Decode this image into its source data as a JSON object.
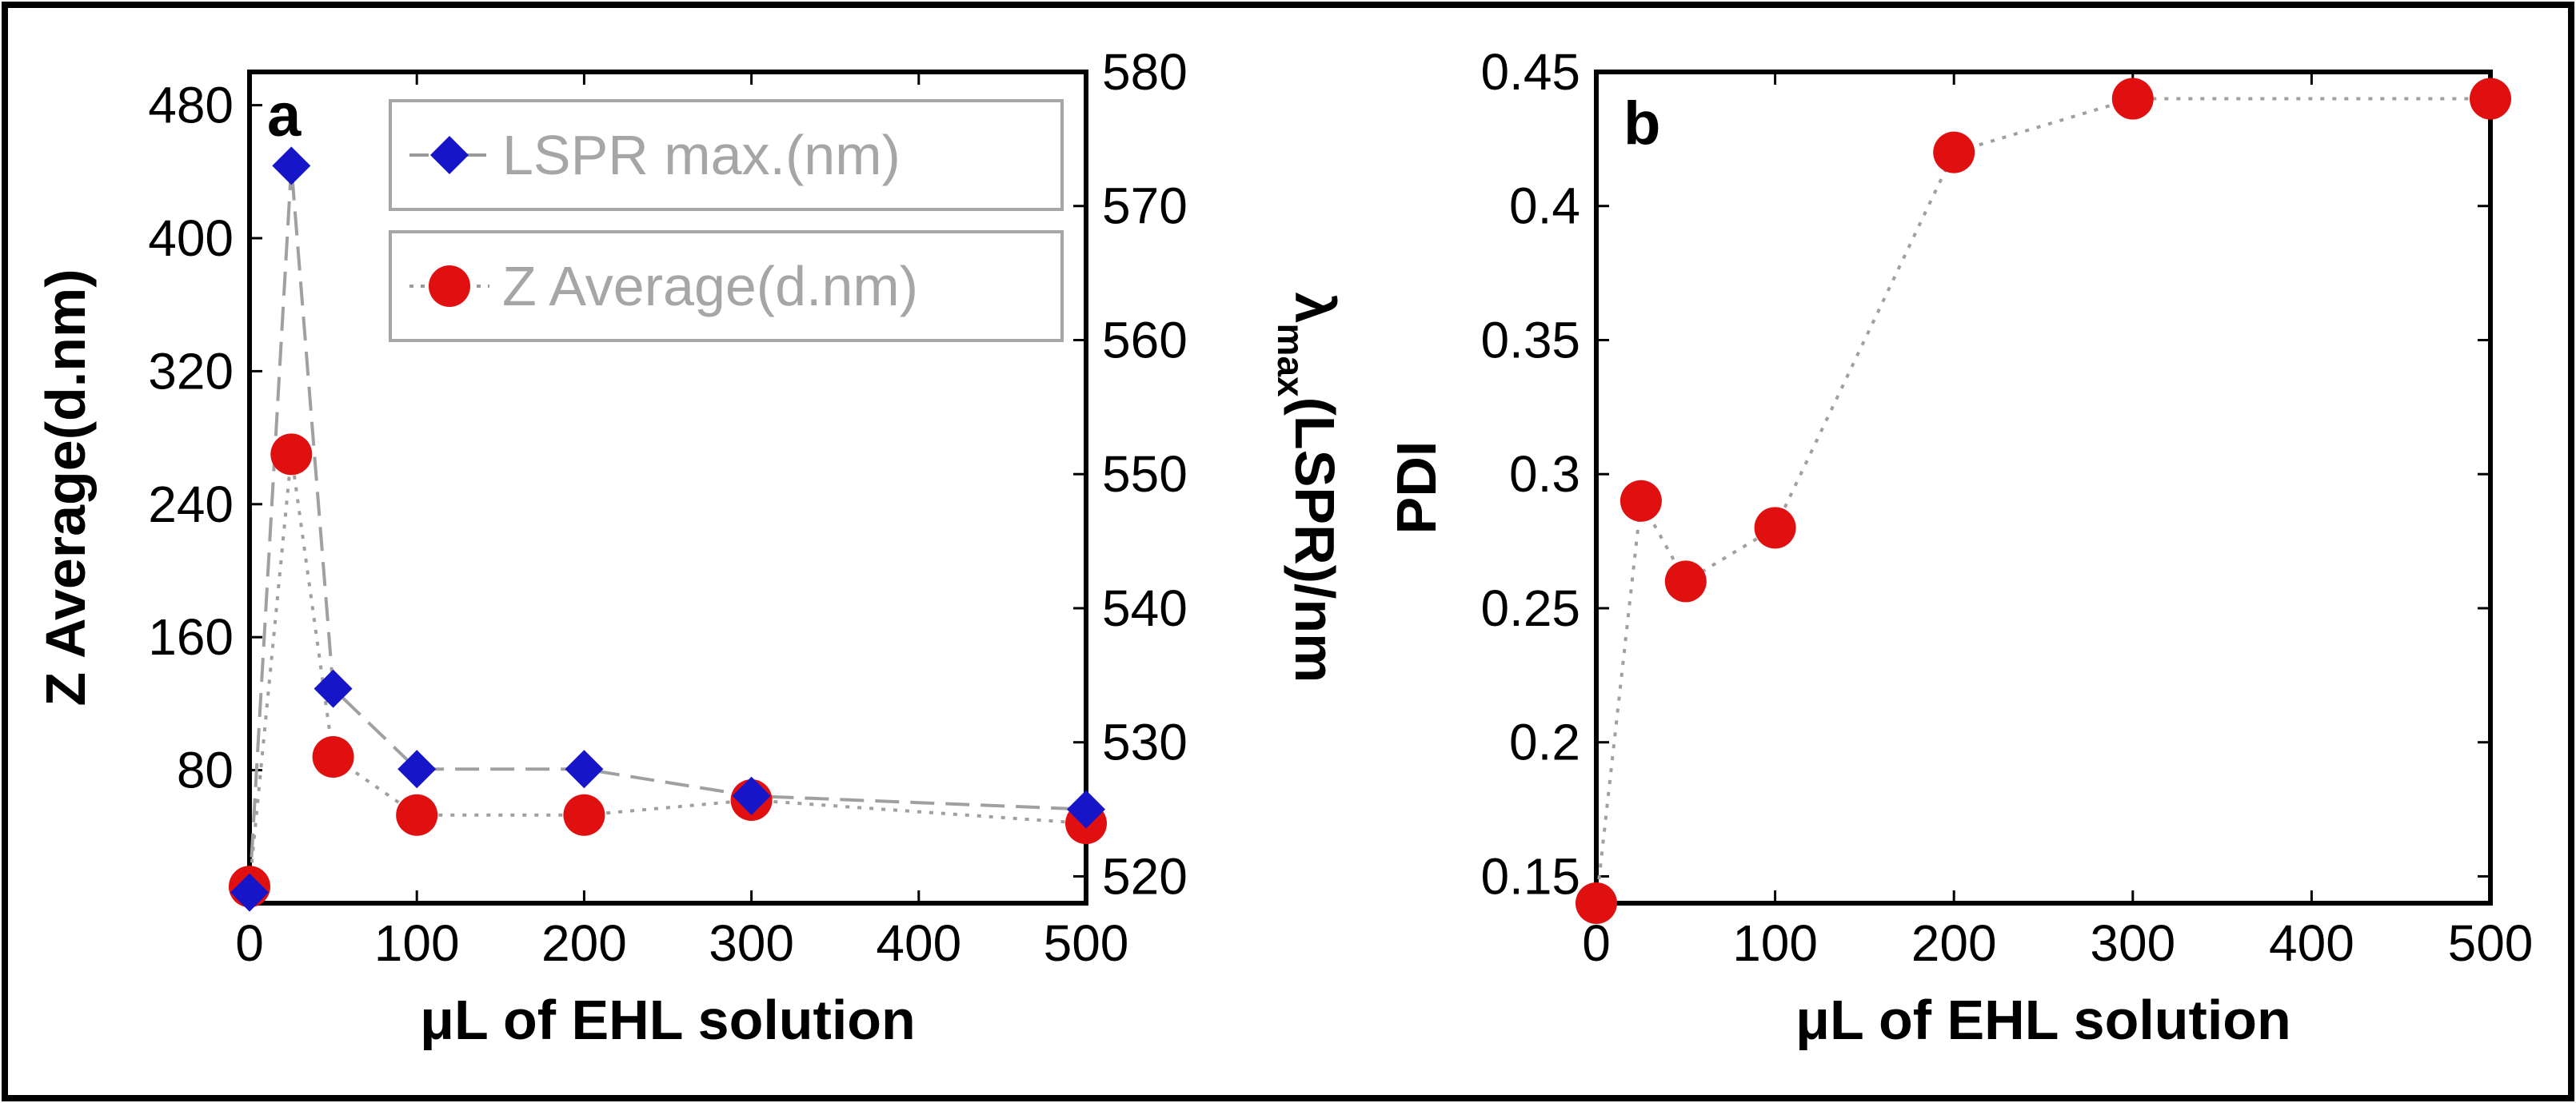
{
  "chart_data": [
    {
      "type": "line",
      "panel_label": "a",
      "x": [
        0,
        25,
        50,
        100,
        200,
        300,
        500
      ],
      "x_tick_labels": [
        "0",
        "100",
        "200",
        "300",
        "400",
        "500"
      ],
      "x_tick_values": [
        0,
        100,
        200,
        300,
        400,
        500
      ],
      "xlabel": "μL of EHL solution",
      "xlim": [
        0,
        500
      ],
      "ylabel": "Z Average(d.nm)",
      "ylim": [
        0,
        500
      ],
      "y_tick_labels": [
        "80",
        "160",
        "240",
        "320",
        "400",
        "480"
      ],
      "y_tick_values": [
        80,
        160,
        240,
        320,
        400,
        480
      ],
      "y2label_main": "λ",
      "y2label_sub": "max",
      "y2label_rest": "(LSPR)/nm",
      "y2lim": [
        518,
        580
      ],
      "y2_tick_labels": [
        "520",
        "530",
        "540",
        "550",
        "560",
        "570",
        "580"
      ],
      "y2_tick_values": [
        520,
        530,
        540,
        550,
        560,
        570,
        580
      ],
      "legend_position": "top-right",
      "series": [
        {
          "name": "LSPR max.(nm)",
          "axis": "right",
          "marker": "diamond",
          "color": "#1616c8",
          "line_style": "dashed",
          "line_color": "#a0a0a0",
          "values": [
            518.8,
            573.0,
            534.0,
            528.0,
            528.0,
            526.0,
            525.0
          ]
        },
        {
          "name": "Z Average(d.nm)",
          "axis": "left",
          "marker": "circle",
          "color": "#e01010",
          "line_style": "dotted",
          "line_color": "#a0a0a0",
          "values": [
            10,
            270,
            88,
            53,
            53,
            62,
            48
          ]
        }
      ]
    },
    {
      "type": "line",
      "panel_label": "b",
      "x": [
        0,
        25,
        50,
        100,
        200,
        300,
        500
      ],
      "x_tick_labels": [
        "0",
        "100",
        "200",
        "300",
        "400",
        "500"
      ],
      "x_tick_values": [
        0,
        100,
        200,
        300,
        400,
        500
      ],
      "xlabel": "μL of EHL solution",
      "xlim": [
        0,
        500
      ],
      "ylabel": "PDI",
      "ylim": [
        0.14,
        0.45
      ],
      "y_tick_labels": [
        "0.15",
        "0.2",
        "0.25",
        "0.3",
        "0.35",
        "0.4",
        "0.45"
      ],
      "y_tick_values": [
        0.15,
        0.2,
        0.25,
        0.3,
        0.35,
        0.4,
        0.45
      ],
      "series": [
        {
          "name": "PDI",
          "marker": "circle",
          "color": "#e01010",
          "line_style": "dotted",
          "line_color": "#a0a0a0",
          "values": [
            0.14,
            0.29,
            0.26,
            0.28,
            0.42,
            0.44,
            0.44
          ]
        }
      ]
    }
  ]
}
